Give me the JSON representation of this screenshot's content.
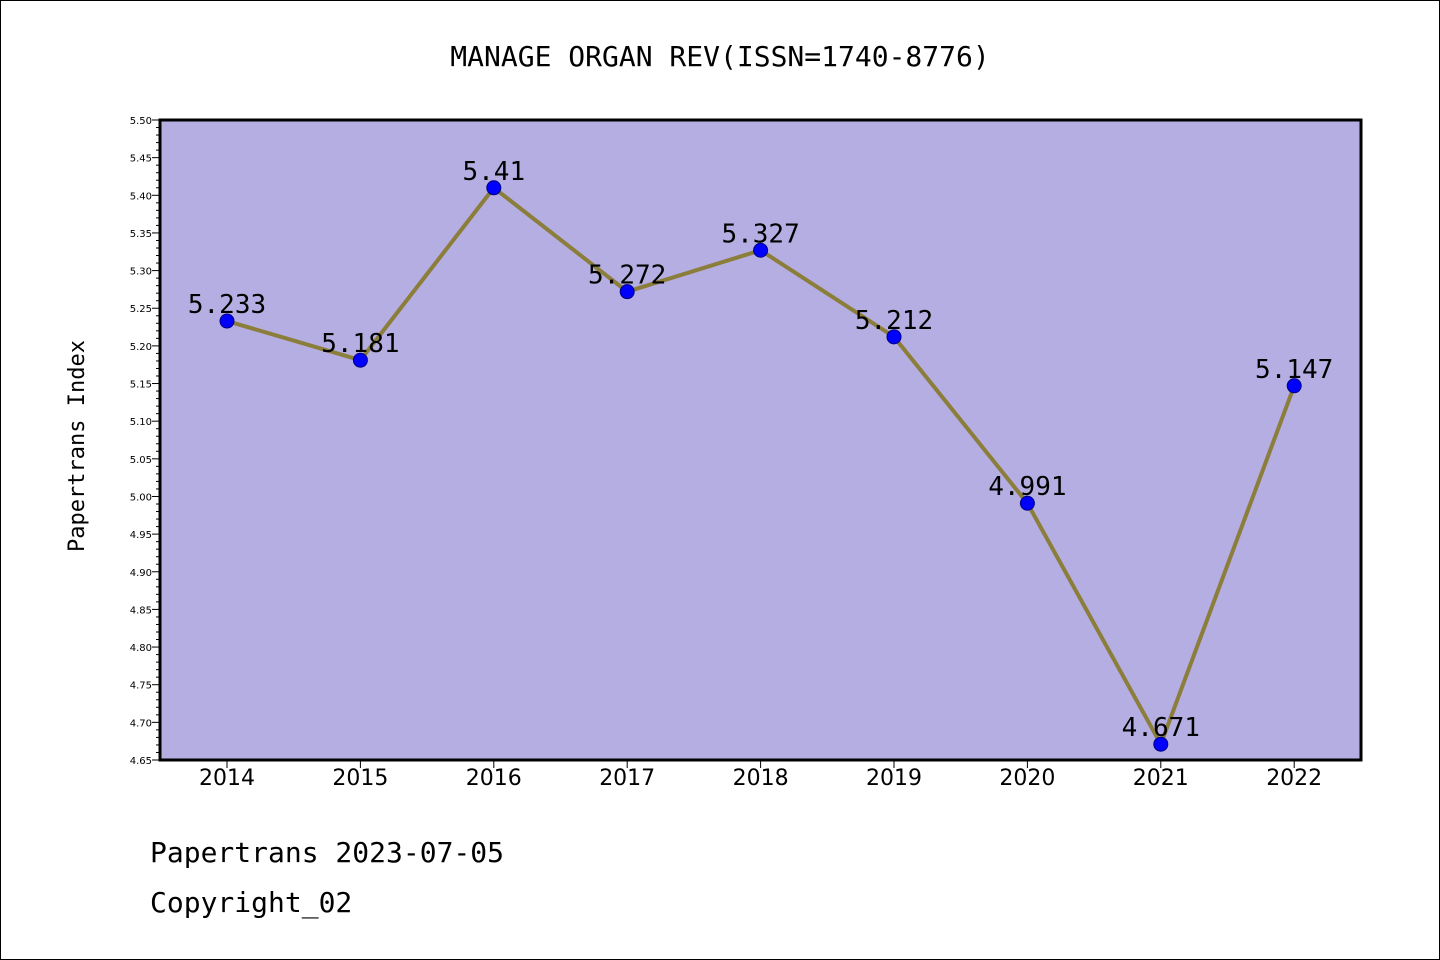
{
  "chart_data": {
    "type": "line",
    "title": "MANAGE ORGAN REV(ISSN=1740-8776)",
    "xlabel": "",
    "ylabel": "Papertrans Index",
    "categories": [
      "2014",
      "2015",
      "2016",
      "2017",
      "2018",
      "2019",
      "2020",
      "2021",
      "2022"
    ],
    "series": [
      {
        "values": [
          5.233,
          5.181,
          5.41,
          5.272,
          5.327,
          5.212,
          4.991,
          4.671,
          5.147
        ],
        "data_labels": [
          "5.233",
          "5.181",
          "5.41",
          "5.272",
          "5.327",
          "5.212",
          "4.991",
          "4.671",
          "5.147"
        ]
      }
    ],
    "ylim": [
      4.65,
      5.5
    ],
    "yticks": [
      "4.65",
      "4.70",
      "4.75",
      "4.80",
      "4.85",
      "4.90",
      "4.95",
      "5.00",
      "5.05",
      "5.10",
      "5.15",
      "5.20",
      "5.25",
      "5.30",
      "5.35",
      "5.40",
      "5.45",
      "5.50"
    ],
    "grid": false,
    "legend": "none",
    "colors": {
      "plot_background": "#b5aee2",
      "line": "#8b7d3a",
      "marker_fill": "#0000ff",
      "marker_edge": "#000080"
    }
  },
  "footer": {
    "date_line": "Papertrans 2023-07-05",
    "copyright": "Copyright_02"
  }
}
